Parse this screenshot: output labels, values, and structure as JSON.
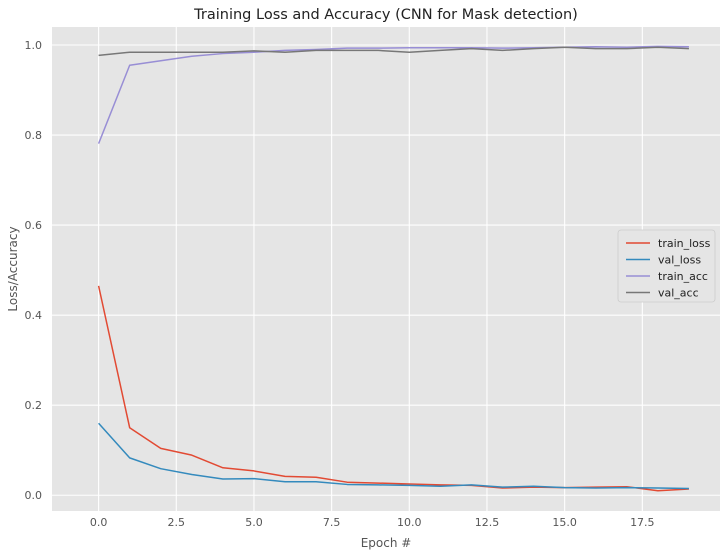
{
  "chart_data": {
    "type": "line",
    "title": "Training Loss and Accuracy (CNN for Mask detection)",
    "xlabel": "Epoch #",
    "ylabel": "Loss/Accuracy",
    "x": [
      0,
      1,
      2,
      3,
      4,
      5,
      6,
      7,
      8,
      9,
      10,
      11,
      12,
      13,
      14,
      15,
      16,
      17,
      18,
      19
    ],
    "xlim": [
      -1.5,
      20.0
    ],
    "ylim": [
      -0.035,
      1.04
    ],
    "xticks": [
      0.0,
      2.5,
      5.0,
      7.5,
      10.0,
      12.5,
      15.0,
      17.5
    ],
    "xtick_labels": [
      "0.0",
      "2.5",
      "5.0",
      "7.5",
      "10.0",
      "12.5",
      "15.0",
      "17.5"
    ],
    "yticks": [
      0.0,
      0.2,
      0.4,
      0.6,
      0.8,
      1.0
    ],
    "ytick_labels": [
      "0.0",
      "0.2",
      "0.4",
      "0.6",
      "0.8",
      "1.0"
    ],
    "grid": true,
    "legend_position": "center-right",
    "style": {
      "plot_background": "#e5e5e5",
      "grid_color": "#ffffff"
    },
    "series": [
      {
        "name": "train_loss",
        "color": "#e24a33",
        "values": [
          0.465,
          0.15,
          0.104,
          0.089,
          0.061,
          0.054,
          0.042,
          0.04,
          0.029,
          0.027,
          0.025,
          0.023,
          0.022,
          0.016,
          0.018,
          0.017,
          0.018,
          0.019,
          0.01,
          0.014
        ]
      },
      {
        "name": "val_loss",
        "color": "#348abd",
        "values": [
          0.16,
          0.083,
          0.059,
          0.046,
          0.036,
          0.037,
          0.03,
          0.03,
          0.024,
          0.023,
          0.022,
          0.02,
          0.023,
          0.018,
          0.02,
          0.017,
          0.016,
          0.017,
          0.016,
          0.015
        ]
      },
      {
        "name": "train_acc",
        "color": "#988ed5",
        "values": [
          0.781,
          0.955,
          0.965,
          0.975,
          0.981,
          0.984,
          0.988,
          0.99,
          0.993,
          0.993,
          0.994,
          0.994,
          0.994,
          0.993,
          0.994,
          0.995,
          0.996,
          0.995,
          0.997,
          0.996
        ]
      },
      {
        "name": "val_acc",
        "color": "#777777",
        "values": [
          0.977,
          0.984,
          0.984,
          0.984,
          0.984,
          0.987,
          0.984,
          0.988,
          0.988,
          0.988,
          0.984,
          0.988,
          0.992,
          0.988,
          0.992,
          0.995,
          0.992,
          0.992,
          0.995,
          0.992
        ]
      }
    ]
  }
}
